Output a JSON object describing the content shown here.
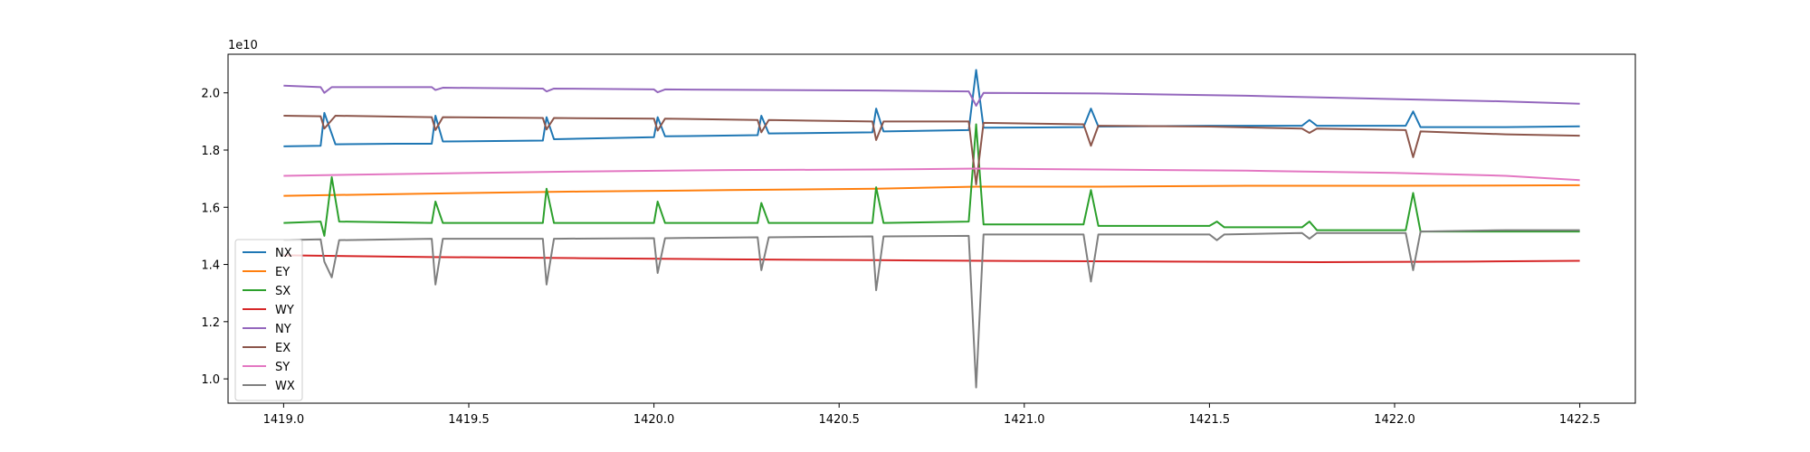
{
  "chart_data": {
    "type": "line",
    "title": "",
    "xlabel": "",
    "ylabel": "",
    "y_offset_label": "1e10",
    "xlim": [
      1418.85,
      1422.65
    ],
    "ylim": [
      0.915,
      2.135
    ],
    "x_ticks": [
      {
        "value": 1419.0,
        "label": "1419.0"
      },
      {
        "value": 1419.5,
        "label": "1419.5"
      },
      {
        "value": 1420.0,
        "label": "1420.0"
      },
      {
        "value": 1420.5,
        "label": "1420.5"
      },
      {
        "value": 1421.0,
        "label": "1421.0"
      },
      {
        "value": 1421.5,
        "label": "1421.5"
      },
      {
        "value": 1422.0,
        "label": "1422.0"
      },
      {
        "value": 1422.5,
        "label": "1422.5"
      }
    ],
    "y_ticks": [
      {
        "value": 1.0,
        "label": "1.0"
      },
      {
        "value": 1.2,
        "label": "1.2"
      },
      {
        "value": 1.4,
        "label": "1.4"
      },
      {
        "value": 1.6,
        "label": "1.6"
      },
      {
        "value": 1.8,
        "label": "1.8"
      },
      {
        "value": 2.0,
        "label": "2.0"
      }
    ],
    "grid": false,
    "legend_position": "lower-left",
    "series": [
      {
        "name": "NX",
        "color": "#1f77b4",
        "points": [
          [
            1419.0,
            1.813
          ],
          [
            1419.1,
            1.815
          ],
          [
            1419.11,
            1.93
          ],
          [
            1419.14,
            1.82
          ],
          [
            1419.3,
            1.822
          ],
          [
            1419.4,
            1.822
          ],
          [
            1419.41,
            1.92
          ],
          [
            1419.43,
            1.83
          ],
          [
            1419.7,
            1.833
          ],
          [
            1419.71,
            1.915
          ],
          [
            1419.73,
            1.838
          ],
          [
            1420.0,
            1.845
          ],
          [
            1420.01,
            1.915
          ],
          [
            1420.03,
            1.848
          ],
          [
            1420.28,
            1.852
          ],
          [
            1420.29,
            1.92
          ],
          [
            1420.31,
            1.858
          ],
          [
            1420.59,
            1.862
          ],
          [
            1420.6,
            1.945
          ],
          [
            1420.62,
            1.865
          ],
          [
            1420.85,
            1.87
          ],
          [
            1420.87,
            2.08
          ],
          [
            1420.89,
            1.878
          ],
          [
            1421.16,
            1.88
          ],
          [
            1421.18,
            1.945
          ],
          [
            1421.2,
            1.882
          ],
          [
            1421.5,
            1.885
          ],
          [
            1421.75,
            1.885
          ],
          [
            1421.77,
            1.905
          ],
          [
            1421.79,
            1.885
          ],
          [
            1422.03,
            1.885
          ],
          [
            1422.05,
            1.935
          ],
          [
            1422.07,
            1.88
          ],
          [
            1422.3,
            1.88
          ],
          [
            1422.5,
            1.883
          ]
        ]
      },
      {
        "name": "EY",
        "color": "#ff7f0e",
        "points": [
          [
            1419.0,
            1.64
          ],
          [
            1419.4,
            1.648
          ],
          [
            1419.8,
            1.655
          ],
          [
            1420.2,
            1.66
          ],
          [
            1420.6,
            1.665
          ],
          [
            1420.87,
            1.672
          ],
          [
            1421.2,
            1.672
          ],
          [
            1421.6,
            1.675
          ],
          [
            1422.0,
            1.675
          ],
          [
            1422.5,
            1.677
          ]
        ]
      },
      {
        "name": "SX",
        "color": "#2ca02c",
        "points": [
          [
            1419.0,
            1.545
          ],
          [
            1419.1,
            1.55
          ],
          [
            1419.11,
            1.5
          ],
          [
            1419.13,
            1.705
          ],
          [
            1419.15,
            1.55
          ],
          [
            1419.4,
            1.545
          ],
          [
            1419.41,
            1.62
          ],
          [
            1419.43,
            1.545
          ],
          [
            1419.7,
            1.545
          ],
          [
            1419.71,
            1.665
          ],
          [
            1419.73,
            1.545
          ],
          [
            1420.0,
            1.545
          ],
          [
            1420.01,
            1.62
          ],
          [
            1420.03,
            1.545
          ],
          [
            1420.28,
            1.545
          ],
          [
            1420.29,
            1.615
          ],
          [
            1420.31,
            1.545
          ],
          [
            1420.59,
            1.545
          ],
          [
            1420.6,
            1.67
          ],
          [
            1420.62,
            1.545
          ],
          [
            1420.85,
            1.55
          ],
          [
            1420.87,
            1.89
          ],
          [
            1420.89,
            1.54
          ],
          [
            1421.16,
            1.54
          ],
          [
            1421.18,
            1.66
          ],
          [
            1421.2,
            1.535
          ],
          [
            1421.5,
            1.535
          ],
          [
            1421.52,
            1.55
          ],
          [
            1421.54,
            1.53
          ],
          [
            1421.75,
            1.53
          ],
          [
            1421.77,
            1.55
          ],
          [
            1421.79,
            1.52
          ],
          [
            1422.03,
            1.52
          ],
          [
            1422.05,
            1.65
          ],
          [
            1422.07,
            1.515
          ],
          [
            1422.3,
            1.515
          ],
          [
            1422.5,
            1.515
          ]
        ]
      },
      {
        "name": "WY",
        "color": "#d62728",
        "points": [
          [
            1419.0,
            1.432
          ],
          [
            1419.4,
            1.426
          ],
          [
            1419.8,
            1.422
          ],
          [
            1420.2,
            1.418
          ],
          [
            1420.6,
            1.415
          ],
          [
            1421.0,
            1.412
          ],
          [
            1421.4,
            1.41
          ],
          [
            1421.8,
            1.408
          ],
          [
            1422.2,
            1.41
          ],
          [
            1422.5,
            1.413
          ]
        ]
      },
      {
        "name": "NY",
        "color": "#9467bd",
        "points": [
          [
            1419.0,
            2.025
          ],
          [
            1419.1,
            2.02
          ],
          [
            1419.11,
            2.0
          ],
          [
            1419.13,
            2.02
          ],
          [
            1419.4,
            2.02
          ],
          [
            1419.41,
            2.01
          ],
          [
            1419.43,
            2.018
          ],
          [
            1419.7,
            2.015
          ],
          [
            1419.71,
            2.005
          ],
          [
            1419.73,
            2.015
          ],
          [
            1420.0,
            2.012
          ],
          [
            1420.01,
            2.002
          ],
          [
            1420.03,
            2.012
          ],
          [
            1420.6,
            2.008
          ],
          [
            1420.85,
            2.005
          ],
          [
            1420.87,
            1.955
          ],
          [
            1420.89,
            2.0
          ],
          [
            1421.2,
            1.998
          ],
          [
            1421.6,
            1.99
          ],
          [
            1422.0,
            1.978
          ],
          [
            1422.3,
            1.97
          ],
          [
            1422.5,
            1.962
          ]
        ]
      },
      {
        "name": "EX",
        "color": "#8c564b",
        "points": [
          [
            1419.0,
            1.92
          ],
          [
            1419.1,
            1.918
          ],
          [
            1419.11,
            1.875
          ],
          [
            1419.14,
            1.92
          ],
          [
            1419.4,
            1.915
          ],
          [
            1419.41,
            1.87
          ],
          [
            1419.43,
            1.915
          ],
          [
            1419.7,
            1.912
          ],
          [
            1419.71,
            1.872
          ],
          [
            1419.73,
            1.912
          ],
          [
            1420.0,
            1.91
          ],
          [
            1420.01,
            1.868
          ],
          [
            1420.03,
            1.91
          ],
          [
            1420.28,
            1.905
          ],
          [
            1420.29,
            1.862
          ],
          [
            1420.31,
            1.905
          ],
          [
            1420.59,
            1.9
          ],
          [
            1420.6,
            1.835
          ],
          [
            1420.62,
            1.9
          ],
          [
            1420.85,
            1.9
          ],
          [
            1420.87,
            1.68
          ],
          [
            1420.89,
            1.895
          ],
          [
            1421.16,
            1.89
          ],
          [
            1421.18,
            1.815
          ],
          [
            1421.2,
            1.885
          ],
          [
            1421.5,
            1.882
          ],
          [
            1421.75,
            1.875
          ],
          [
            1421.77,
            1.86
          ],
          [
            1421.79,
            1.875
          ],
          [
            1422.03,
            1.87
          ],
          [
            1422.05,
            1.775
          ],
          [
            1422.07,
            1.865
          ],
          [
            1422.3,
            1.855
          ],
          [
            1422.5,
            1.85
          ]
        ]
      },
      {
        "name": "SY",
        "color": "#e377c2",
        "points": [
          [
            1419.0,
            1.71
          ],
          [
            1419.4,
            1.718
          ],
          [
            1419.8,
            1.725
          ],
          [
            1420.2,
            1.73
          ],
          [
            1420.6,
            1.732
          ],
          [
            1420.87,
            1.735
          ],
          [
            1421.2,
            1.732
          ],
          [
            1421.6,
            1.728
          ],
          [
            1422.0,
            1.72
          ],
          [
            1422.3,
            1.71
          ],
          [
            1422.5,
            1.695
          ]
        ]
      },
      {
        "name": "WX",
        "color": "#7f7f7f",
        "points": [
          [
            1419.0,
            1.485
          ],
          [
            1419.1,
            1.488
          ],
          [
            1419.11,
            1.41
          ],
          [
            1419.13,
            1.355
          ],
          [
            1419.15,
            1.485
          ],
          [
            1419.4,
            1.49
          ],
          [
            1419.41,
            1.33
          ],
          [
            1419.43,
            1.49
          ],
          [
            1419.7,
            1.49
          ],
          [
            1419.71,
            1.33
          ],
          [
            1419.73,
            1.49
          ],
          [
            1420.0,
            1.492
          ],
          [
            1420.01,
            1.37
          ],
          [
            1420.03,
            1.492
          ],
          [
            1420.28,
            1.495
          ],
          [
            1420.29,
            1.38
          ],
          [
            1420.31,
            1.495
          ],
          [
            1420.59,
            1.498
          ],
          [
            1420.6,
            1.31
          ],
          [
            1420.62,
            1.498
          ],
          [
            1420.85,
            1.5
          ],
          [
            1420.87,
            0.97
          ],
          [
            1420.89,
            1.505
          ],
          [
            1421.16,
            1.505
          ],
          [
            1421.18,
            1.34
          ],
          [
            1421.2,
            1.505
          ],
          [
            1421.5,
            1.505
          ],
          [
            1421.52,
            1.485
          ],
          [
            1421.54,
            1.505
          ],
          [
            1421.75,
            1.51
          ],
          [
            1421.77,
            1.49
          ],
          [
            1421.79,
            1.51
          ],
          [
            1422.03,
            1.51
          ],
          [
            1422.05,
            1.38
          ],
          [
            1422.07,
            1.515
          ],
          [
            1422.3,
            1.52
          ],
          [
            1422.5,
            1.52
          ]
        ]
      }
    ]
  }
}
